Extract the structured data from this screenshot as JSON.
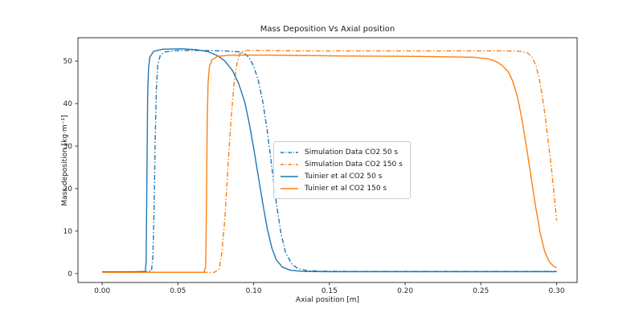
{
  "chart_data": {
    "type": "line",
    "title": "Mass Deposition Vs Axial position",
    "xlabel": "Axial position [m]",
    "ylabel": "Mass deposition [kg·m⁻¹]",
    "xlim": [
      -0.016,
      0.3135
    ],
    "ylim": [
      -2.1,
      55.5
    ],
    "grid": false,
    "legend_position": "center",
    "xticks": {
      "values": [
        0.0,
        0.05,
        0.1,
        0.15,
        0.2,
        0.25,
        0.3
      ],
      "labels": [
        "0.00",
        "0.05",
        "0.10",
        "0.15",
        "0.20",
        "0.25",
        "0.30"
      ]
    },
    "yticks": {
      "values": [
        0,
        10,
        20,
        30,
        40,
        50
      ],
      "labels": [
        "0",
        "10",
        "20",
        "30",
        "40",
        "50"
      ]
    },
    "colors": {
      "blue": "#1f77b4",
      "orange": "#ff7f0e"
    },
    "series": [
      {
        "name": "Simulation Data CO2 50 s",
        "color": "#1f77b4",
        "style": "dashdot",
        "points": [
          [
            0.0,
            0.4
          ],
          [
            0.015,
            0.4
          ],
          [
            0.028,
            0.4
          ],
          [
            0.0325,
            0.6
          ],
          [
            0.0335,
            4
          ],
          [
            0.0343,
            16
          ],
          [
            0.035,
            32
          ],
          [
            0.0358,
            44
          ],
          [
            0.0368,
            49.5
          ],
          [
            0.0385,
            51.5
          ],
          [
            0.042,
            52.2
          ],
          [
            0.05,
            52.5
          ],
          [
            0.065,
            52.5
          ],
          [
            0.08,
            52.4
          ],
          [
            0.09,
            52.2
          ],
          [
            0.094,
            51.8
          ],
          [
            0.097,
            50.8
          ],
          [
            0.1,
            48.8
          ],
          [
            0.103,
            45.5
          ],
          [
            0.106,
            40.5
          ],
          [
            0.109,
            33.5
          ],
          [
            0.112,
            25
          ],
          [
            0.115,
            16.5
          ],
          [
            0.118,
            9.5
          ],
          [
            0.121,
            5
          ],
          [
            0.125,
            2.3
          ],
          [
            0.129,
            1.2
          ],
          [
            0.135,
            0.7
          ],
          [
            0.145,
            0.55
          ],
          [
            0.17,
            0.5
          ],
          [
            0.22,
            0.5
          ],
          [
            0.27,
            0.5
          ],
          [
            0.3,
            0.5
          ]
        ]
      },
      {
        "name": "Simulation Data CO2 150 s",
        "color": "#ff7f0e",
        "style": "dashdot",
        "points": [
          [
            0.0,
            0.3
          ],
          [
            0.04,
            0.3
          ],
          [
            0.074,
            0.3
          ],
          [
            0.0772,
            1
          ],
          [
            0.079,
            5
          ],
          [
            0.081,
            13
          ],
          [
            0.083,
            25
          ],
          [
            0.085,
            36
          ],
          [
            0.087,
            44.5
          ],
          [
            0.089,
            49.5
          ],
          [
            0.091,
            51.8
          ],
          [
            0.094,
            52.5
          ],
          [
            0.1,
            52.5
          ],
          [
            0.13,
            52.4
          ],
          [
            0.18,
            52.4
          ],
          [
            0.23,
            52.4
          ],
          [
            0.265,
            52.4
          ],
          [
            0.276,
            52.3
          ],
          [
            0.281,
            51.9
          ],
          [
            0.284,
            50.8
          ],
          [
            0.2865,
            48.8
          ],
          [
            0.289,
            45
          ],
          [
            0.2915,
            39.5
          ],
          [
            0.294,
            32.5
          ],
          [
            0.2965,
            25
          ],
          [
            0.2985,
            18
          ],
          [
            0.3,
            12.5
          ]
        ]
      },
      {
        "name": "Tuinier et al CO2 50 s",
        "color": "#1f77b4",
        "style": "solid",
        "points": [
          [
            0.0,
            0.4
          ],
          [
            0.02,
            0.4
          ],
          [
            0.0285,
            0.5
          ],
          [
            0.029,
            3
          ],
          [
            0.0295,
            22
          ],
          [
            0.03,
            42
          ],
          [
            0.0306,
            48.5
          ],
          [
            0.0315,
            51
          ],
          [
            0.034,
            52.3
          ],
          [
            0.04,
            52.8
          ],
          [
            0.052,
            52.9
          ],
          [
            0.062,
            52.7
          ],
          [
            0.07,
            52.2
          ],
          [
            0.076,
            51.3
          ],
          [
            0.081,
            50
          ],
          [
            0.086,
            47.8
          ],
          [
            0.09,
            44.8
          ],
          [
            0.094,
            40.5
          ],
          [
            0.097,
            35.5
          ],
          [
            0.1,
            29.5
          ],
          [
            0.103,
            23
          ],
          [
            0.106,
            16.5
          ],
          [
            0.109,
            10.5
          ],
          [
            0.112,
            6
          ],
          [
            0.115,
            3.2
          ],
          [
            0.119,
            1.5
          ],
          [
            0.124,
            0.8
          ],
          [
            0.132,
            0.5
          ],
          [
            0.15,
            0.45
          ],
          [
            0.2,
            0.45
          ],
          [
            0.25,
            0.45
          ],
          [
            0.3,
            0.45
          ]
        ]
      },
      {
        "name": "Tuinier et al CO2 150 s",
        "color": "#ff7f0e",
        "style": "solid",
        "points": [
          [
            0.0,
            0.3
          ],
          [
            0.035,
            0.3
          ],
          [
            0.067,
            0.3
          ],
          [
            0.0683,
            1.5
          ],
          [
            0.0688,
            15
          ],
          [
            0.0693,
            35
          ],
          [
            0.0699,
            45
          ],
          [
            0.0708,
            48.8
          ],
          [
            0.0725,
            50.3
          ],
          [
            0.076,
            51.1
          ],
          [
            0.085,
            51.4
          ],
          [
            0.11,
            51.4
          ],
          [
            0.16,
            51.2
          ],
          [
            0.21,
            51.1
          ],
          [
            0.245,
            50.9
          ],
          [
            0.255,
            50.5
          ],
          [
            0.26,
            49.9
          ],
          [
            0.264,
            49
          ],
          [
            0.268,
            47.5
          ],
          [
            0.271,
            45.3
          ],
          [
            0.274,
            41.8
          ],
          [
            0.277,
            36.5
          ],
          [
            0.28,
            30
          ],
          [
            0.283,
            23
          ],
          [
            0.286,
            16
          ],
          [
            0.289,
            9.8
          ],
          [
            0.292,
            5.3
          ],
          [
            0.295,
            2.8
          ],
          [
            0.298,
            1.7
          ],
          [
            0.3,
            1.4
          ]
        ]
      }
    ]
  }
}
